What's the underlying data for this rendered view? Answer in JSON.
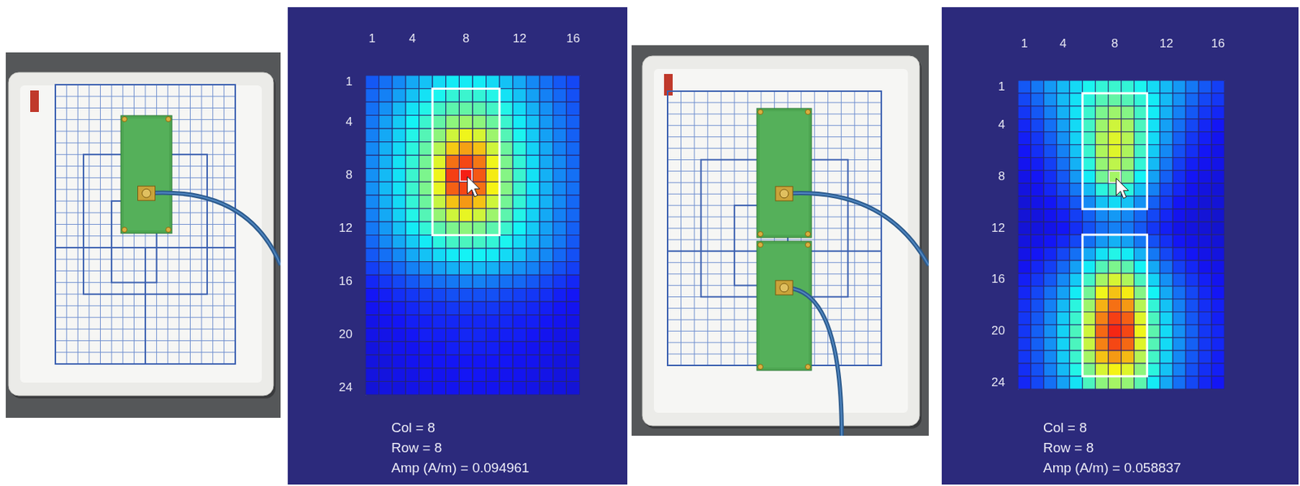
{
  "photos": [
    {
      "boards": 1
    },
    {
      "boards": 2
    }
  ],
  "chart_data": [
    {
      "type": "heatmap",
      "xlim": [
        0.5,
        16.5
      ],
      "xticks": [
        1,
        4,
        8,
        12,
        16
      ],
      "ylim": [
        24.5,
        0.5
      ],
      "yticks": [
        1,
        4,
        8,
        12,
        16,
        20,
        24
      ],
      "zlim": [
        0,
        0.11
      ],
      "outlines": [
        {
          "x": [
            6,
            10
          ],
          "y": [
            2,
            12
          ]
        }
      ],
      "cursor": {
        "x": 8,
        "y": 8
      },
      "readout": [
        "Col = 8",
        "Row = 8",
        "Amp (A/m) = 0.094961"
      ],
      "cells": [
        [
          0.022,
          0.025,
          0.028,
          0.032,
          0.035,
          0.038,
          0.04,
          0.04,
          0.04,
          0.038,
          0.035,
          0.032,
          0.028,
          0.025,
          0.022,
          0.02
        ],
        [
          0.024,
          0.027,
          0.031,
          0.035,
          0.039,
          0.042,
          0.045,
          0.046,
          0.045,
          0.043,
          0.039,
          0.035,
          0.031,
          0.027,
          0.024,
          0.021
        ],
        [
          0.025,
          0.029,
          0.034,
          0.039,
          0.043,
          0.047,
          0.05,
          0.051,
          0.05,
          0.047,
          0.043,
          0.038,
          0.033,
          0.029,
          0.025,
          0.022
        ],
        [
          0.026,
          0.031,
          0.036,
          0.041,
          0.046,
          0.051,
          0.056,
          0.058,
          0.056,
          0.052,
          0.046,
          0.04,
          0.035,
          0.03,
          0.026,
          0.023
        ],
        [
          0.027,
          0.032,
          0.037,
          0.043,
          0.049,
          0.056,
          0.064,
          0.068,
          0.065,
          0.058,
          0.049,
          0.042,
          0.036,
          0.031,
          0.027,
          0.023
        ],
        [
          0.028,
          0.033,
          0.038,
          0.044,
          0.051,
          0.061,
          0.074,
          0.079,
          0.075,
          0.064,
          0.052,
          0.044,
          0.037,
          0.032,
          0.027,
          0.024
        ],
        [
          0.028,
          0.033,
          0.039,
          0.045,
          0.053,
          0.066,
          0.085,
          0.09,
          0.084,
          0.068,
          0.054,
          0.045,
          0.038,
          0.032,
          0.028,
          0.024
        ],
        [
          0.029,
          0.034,
          0.039,
          0.046,
          0.054,
          0.068,
          0.091,
          0.094961,
          0.088,
          0.07,
          0.055,
          0.046,
          0.039,
          0.033,
          0.028,
          0.025
        ],
        [
          0.029,
          0.034,
          0.039,
          0.046,
          0.054,
          0.067,
          0.087,
          0.09,
          0.085,
          0.069,
          0.055,
          0.046,
          0.039,
          0.033,
          0.028,
          0.025
        ],
        [
          0.028,
          0.033,
          0.038,
          0.045,
          0.052,
          0.063,
          0.075,
          0.08,
          0.075,
          0.064,
          0.053,
          0.045,
          0.038,
          0.033,
          0.028,
          0.024
        ],
        [
          0.027,
          0.032,
          0.037,
          0.043,
          0.049,
          0.057,
          0.064,
          0.067,
          0.064,
          0.058,
          0.05,
          0.043,
          0.037,
          0.032,
          0.027,
          0.024
        ],
        [
          0.026,
          0.03,
          0.035,
          0.04,
          0.045,
          0.05,
          0.054,
          0.056,
          0.054,
          0.05,
          0.046,
          0.041,
          0.036,
          0.031,
          0.027,
          0.023
        ],
        [
          0.024,
          0.028,
          0.032,
          0.036,
          0.04,
          0.044,
          0.047,
          0.048,
          0.047,
          0.045,
          0.042,
          0.038,
          0.034,
          0.03,
          0.026,
          0.022
        ],
        [
          0.022,
          0.025,
          0.028,
          0.032,
          0.035,
          0.038,
          0.04,
          0.041,
          0.041,
          0.04,
          0.038,
          0.035,
          0.031,
          0.028,
          0.024,
          0.021
        ],
        [
          0.019,
          0.021,
          0.024,
          0.027,
          0.029,
          0.031,
          0.033,
          0.034,
          0.034,
          0.033,
          0.031,
          0.029,
          0.027,
          0.024,
          0.021,
          0.019
        ],
        [
          0.016,
          0.018,
          0.02,
          0.022,
          0.024,
          0.025,
          0.026,
          0.027,
          0.027,
          0.026,
          0.025,
          0.024,
          0.022,
          0.02,
          0.018,
          0.016
        ],
        [
          0.014,
          0.015,
          0.017,
          0.018,
          0.019,
          0.02,
          0.021,
          0.021,
          0.021,
          0.021,
          0.02,
          0.019,
          0.018,
          0.017,
          0.015,
          0.014
        ],
        [
          0.013,
          0.014,
          0.015,
          0.016,
          0.017,
          0.017,
          0.018,
          0.018,
          0.018,
          0.018,
          0.017,
          0.017,
          0.016,
          0.015,
          0.014,
          0.013
        ],
        [
          0.012,
          0.013,
          0.014,
          0.015,
          0.015,
          0.016,
          0.016,
          0.016,
          0.016,
          0.016,
          0.016,
          0.015,
          0.015,
          0.014,
          0.013,
          0.012
        ],
        [
          0.012,
          0.012,
          0.013,
          0.014,
          0.015,
          0.015,
          0.015,
          0.016,
          0.016,
          0.015,
          0.015,
          0.015,
          0.014,
          0.013,
          0.012,
          0.012
        ],
        [
          0.011,
          0.012,
          0.013,
          0.013,
          0.014,
          0.014,
          0.015,
          0.015,
          0.015,
          0.015,
          0.014,
          0.014,
          0.013,
          0.013,
          0.012,
          0.011
        ],
        [
          0.011,
          0.011,
          0.012,
          0.013,
          0.013,
          0.014,
          0.014,
          0.014,
          0.014,
          0.014,
          0.014,
          0.013,
          0.013,
          0.012,
          0.011,
          0.011
        ],
        [
          0.011,
          0.011,
          0.012,
          0.012,
          0.013,
          0.013,
          0.013,
          0.014,
          0.014,
          0.013,
          0.013,
          0.013,
          0.012,
          0.012,
          0.011,
          0.011
        ],
        [
          0.01,
          0.011,
          0.011,
          0.012,
          0.012,
          0.013,
          0.013,
          0.013,
          0.013,
          0.013,
          0.013,
          0.012,
          0.012,
          0.011,
          0.011,
          0.01
        ]
      ]
    },
    {
      "type": "heatmap",
      "xlim": [
        0.5,
        16.5
      ],
      "xticks": [
        1,
        4,
        8,
        12,
        16
      ],
      "ylim": [
        24.5,
        0.5
      ],
      "yticks": [
        1,
        4,
        8,
        12,
        16,
        20,
        24
      ],
      "zlim": [
        0,
        0.11
      ],
      "outlines": [
        {
          "x": [
            6,
            10
          ],
          "y": [
            2,
            10
          ]
        },
        {
          "x": [
            6,
            10
          ],
          "y": [
            13,
            23
          ]
        }
      ],
      "cursor": {
        "x": 8,
        "y": 8
      },
      "readout": [
        "Col = 8",
        "Row = 8",
        "Amp (A/m) = 0.058837"
      ],
      "cells": [
        [
          0.022,
          0.026,
          0.03,
          0.034,
          0.038,
          0.042,
          0.045,
          0.046,
          0.045,
          0.042,
          0.038,
          0.034,
          0.03,
          0.026,
          0.022,
          0.019
        ],
        [
          0.02,
          0.024,
          0.029,
          0.034,
          0.039,
          0.044,
          0.049,
          0.051,
          0.049,
          0.045,
          0.04,
          0.034,
          0.029,
          0.024,
          0.02,
          0.018
        ],
        [
          0.018,
          0.022,
          0.027,
          0.033,
          0.039,
          0.046,
          0.054,
          0.058,
          0.055,
          0.047,
          0.04,
          0.033,
          0.027,
          0.022,
          0.018,
          0.016
        ],
        [
          0.016,
          0.02,
          0.025,
          0.031,
          0.038,
          0.047,
          0.058,
          0.064,
          0.059,
          0.048,
          0.039,
          0.031,
          0.025,
          0.02,
          0.016,
          0.014
        ],
        [
          0.015,
          0.018,
          0.023,
          0.029,
          0.037,
          0.047,
          0.06,
          0.066,
          0.061,
          0.048,
          0.038,
          0.03,
          0.023,
          0.018,
          0.015,
          0.013
        ],
        [
          0.014,
          0.017,
          0.021,
          0.027,
          0.035,
          0.046,
          0.06,
          0.066,
          0.06,
          0.047,
          0.036,
          0.028,
          0.021,
          0.017,
          0.014,
          0.012
        ],
        [
          0.013,
          0.015,
          0.019,
          0.025,
          0.033,
          0.044,
          0.057,
          0.062,
          0.057,
          0.045,
          0.034,
          0.026,
          0.019,
          0.015,
          0.013,
          0.012
        ],
        [
          0.012,
          0.014,
          0.017,
          0.022,
          0.03,
          0.04,
          0.053,
          0.058837,
          0.053,
          0.041,
          0.031,
          0.023,
          0.017,
          0.014,
          0.012,
          0.011
        ],
        [
          0.011,
          0.013,
          0.016,
          0.02,
          0.026,
          0.034,
          0.044,
          0.048,
          0.044,
          0.035,
          0.027,
          0.02,
          0.016,
          0.013,
          0.011,
          0.01
        ],
        [
          0.01,
          0.012,
          0.014,
          0.017,
          0.022,
          0.028,
          0.035,
          0.038,
          0.035,
          0.029,
          0.023,
          0.018,
          0.014,
          0.012,
          0.01,
          0.01
        ],
        [
          0.01,
          0.011,
          0.013,
          0.015,
          0.019,
          0.023,
          0.028,
          0.03,
          0.028,
          0.024,
          0.02,
          0.016,
          0.013,
          0.011,
          0.01,
          0.009
        ],
        [
          0.01,
          0.011,
          0.012,
          0.014,
          0.017,
          0.021,
          0.025,
          0.027,
          0.026,
          0.022,
          0.018,
          0.015,
          0.012,
          0.011,
          0.01,
          0.009
        ],
        [
          0.011,
          0.012,
          0.014,
          0.016,
          0.02,
          0.025,
          0.03,
          0.033,
          0.031,
          0.026,
          0.021,
          0.017,
          0.014,
          0.012,
          0.011,
          0.01
        ],
        [
          0.012,
          0.014,
          0.016,
          0.02,
          0.025,
          0.032,
          0.039,
          0.043,
          0.04,
          0.033,
          0.026,
          0.02,
          0.016,
          0.014,
          0.012,
          0.011
        ],
        [
          0.013,
          0.016,
          0.019,
          0.024,
          0.031,
          0.04,
          0.049,
          0.054,
          0.05,
          0.041,
          0.032,
          0.025,
          0.019,
          0.016,
          0.013,
          0.012
        ],
        [
          0.015,
          0.018,
          0.022,
          0.028,
          0.036,
          0.047,
          0.059,
          0.065,
          0.06,
          0.048,
          0.037,
          0.029,
          0.022,
          0.018,
          0.015,
          0.013
        ],
        [
          0.016,
          0.02,
          0.025,
          0.031,
          0.04,
          0.053,
          0.068,
          0.075,
          0.07,
          0.055,
          0.041,
          0.032,
          0.025,
          0.02,
          0.016,
          0.014
        ],
        [
          0.017,
          0.021,
          0.027,
          0.034,
          0.044,
          0.058,
          0.077,
          0.085,
          0.08,
          0.061,
          0.045,
          0.035,
          0.027,
          0.021,
          0.017,
          0.015
        ],
        [
          0.018,
          0.022,
          0.028,
          0.036,
          0.046,
          0.062,
          0.083,
          0.091,
          0.087,
          0.066,
          0.048,
          0.037,
          0.028,
          0.022,
          0.018,
          0.015
        ],
        [
          0.018,
          0.023,
          0.029,
          0.037,
          0.048,
          0.064,
          0.086,
          0.094,
          0.09,
          0.068,
          0.05,
          0.038,
          0.029,
          0.023,
          0.018,
          0.016
        ],
        [
          0.018,
          0.023,
          0.029,
          0.037,
          0.048,
          0.063,
          0.083,
          0.09,
          0.086,
          0.066,
          0.049,
          0.038,
          0.029,
          0.023,
          0.018,
          0.016
        ],
        [
          0.018,
          0.022,
          0.028,
          0.036,
          0.046,
          0.059,
          0.075,
          0.08,
          0.076,
          0.061,
          0.047,
          0.037,
          0.028,
          0.022,
          0.018,
          0.015
        ],
        [
          0.017,
          0.021,
          0.027,
          0.034,
          0.043,
          0.054,
          0.065,
          0.069,
          0.066,
          0.056,
          0.044,
          0.035,
          0.027,
          0.021,
          0.017,
          0.015
        ],
        [
          0.016,
          0.02,
          0.025,
          0.031,
          0.039,
          0.048,
          0.056,
          0.059,
          0.057,
          0.05,
          0.04,
          0.032,
          0.025,
          0.02,
          0.016,
          0.014
        ]
      ]
    }
  ]
}
